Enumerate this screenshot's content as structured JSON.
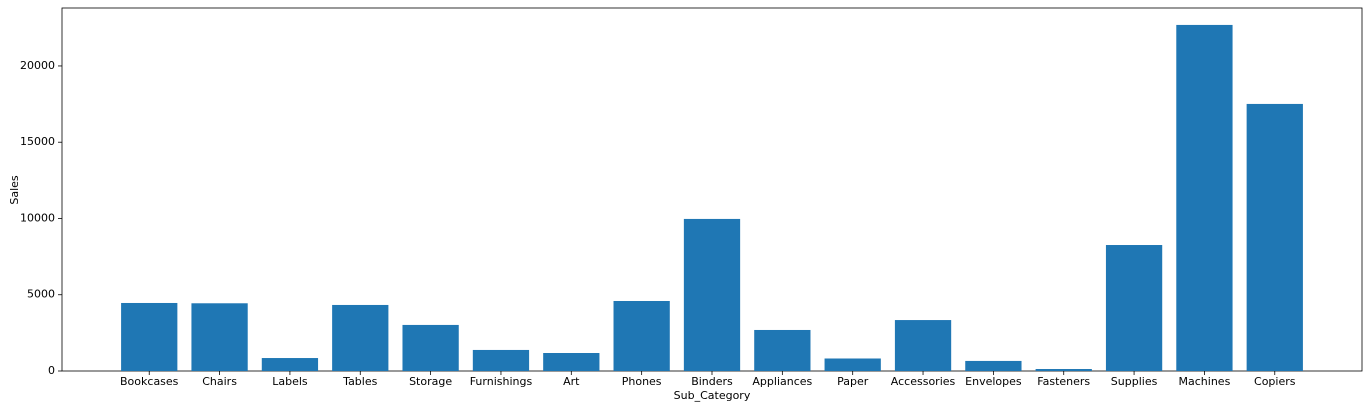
{
  "chart_data": {
    "type": "bar",
    "xlabel": "Sub_Category",
    "ylabel": "Sales",
    "categories": [
      "Bookcases",
      "Chairs",
      "Labels",
      "Tables",
      "Storage",
      "Furnishings",
      "Art",
      "Phones",
      "Binders",
      "Appliances",
      "Paper",
      "Accessories",
      "Envelopes",
      "Fasteners",
      "Supplies",
      "Machines",
      "Copiers"
    ],
    "values": [
      4460,
      4440,
      850,
      4330,
      3020,
      1380,
      1180,
      4590,
      9970,
      2690,
      820,
      3340,
      660,
      130,
      8260,
      22690,
      17510
    ],
    "color": "#1f77b4",
    "ylim": [
      0,
      23800
    ],
    "yticks": [
      0,
      5000,
      10000,
      15000,
      20000
    ],
    "grid": false
  }
}
